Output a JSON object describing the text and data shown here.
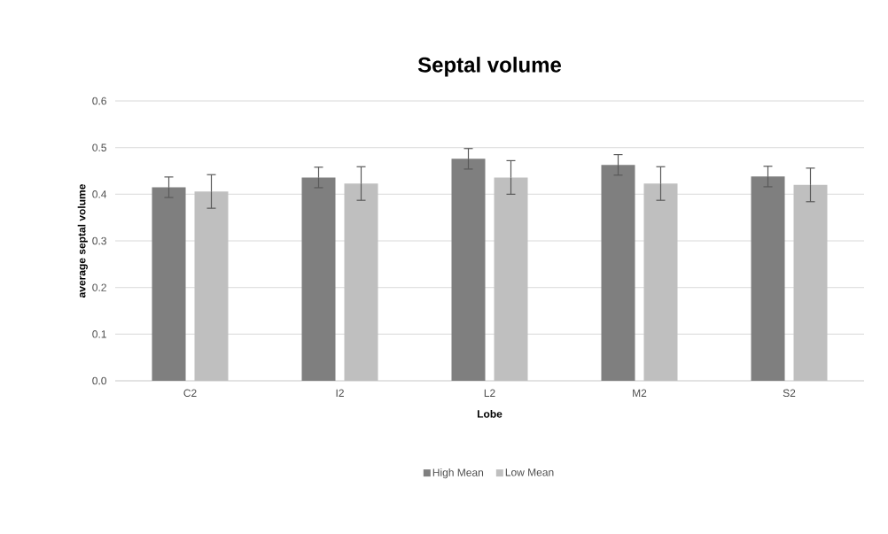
{
  "chart_data": {
    "type": "bar",
    "title": "Septal volume",
    "xlabel": "Lobe",
    "ylabel": "average septal volume",
    "categories": [
      "C2",
      "I2",
      "L2",
      "M2",
      "S2"
    ],
    "series": [
      {
        "name": "High Mean",
        "color": "#7f7f7f",
        "values": [
          0.415,
          0.436,
          0.476,
          0.463,
          0.438
        ],
        "errors": [
          0.022,
          0.022,
          0.022,
          0.022,
          0.022
        ]
      },
      {
        "name": "Low Mean",
        "color": "#bfbfbf",
        "values": [
          0.406,
          0.423,
          0.436,
          0.423,
          0.42
        ],
        "errors": [
          0.036,
          0.036,
          0.036,
          0.036,
          0.036
        ]
      }
    ],
    "ylim": [
      0,
      0.6
    ],
    "yticks": [
      {
        "value": 0,
        "label": "0.0"
      },
      {
        "value": 0.1,
        "label": "0.1"
      },
      {
        "value": 0.2,
        "label": "0.2"
      },
      {
        "value": 0.3,
        "label": "0.3"
      },
      {
        "value": 0.4,
        "label": "0.4"
      },
      {
        "value": 0.5,
        "label": "0.5"
      },
      {
        "value": 0.6,
        "label": "0.6"
      }
    ],
    "grid": "y",
    "legend": "bottom"
  }
}
